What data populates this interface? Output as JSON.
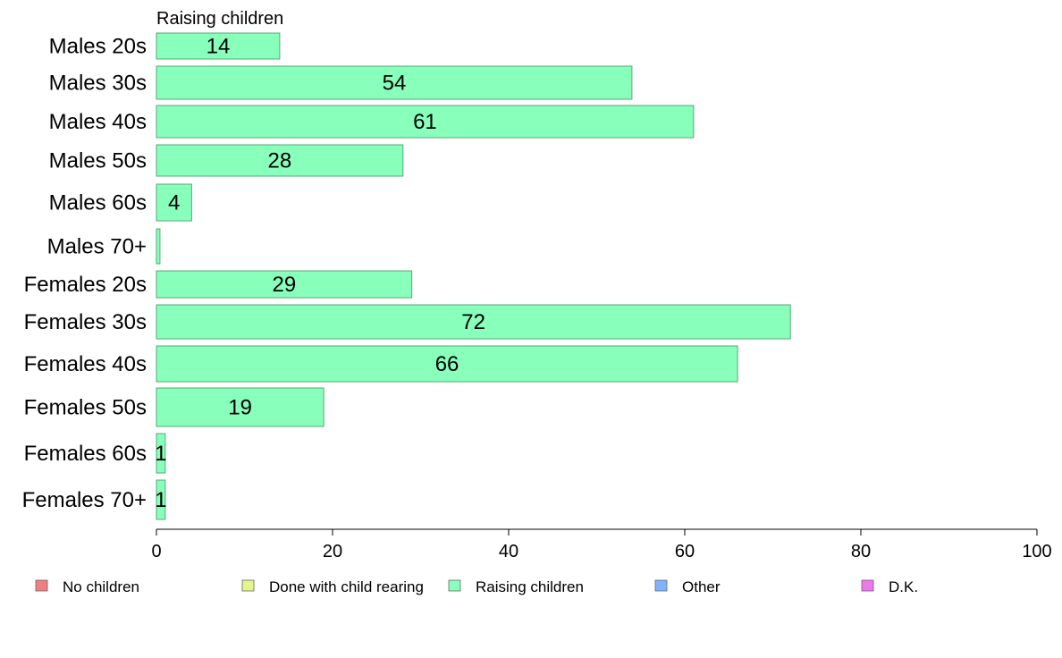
{
  "chart_data": {
    "type": "bar",
    "orientation": "horizontal",
    "stacked": true,
    "series_title": "Raising children",
    "categories": [
      "Males 20s",
      "Males 30s",
      "Males 40s",
      "Males 50s",
      "Males 60s",
      "Males 70+",
      "Females 20s",
      "Females 30s",
      "Females 40s",
      "Females 50s",
      "Females 60s",
      "Females 70+"
    ],
    "series": [
      {
        "name": "Raising children",
        "color": "#88ffbb",
        "values": [
          14,
          54,
          61,
          28,
          4,
          0.4,
          29,
          72,
          66,
          19,
          1,
          1
        ],
        "value_labels": [
          "14",
          "54",
          "61",
          "28",
          "4",
          "",
          "29",
          "72",
          "66",
          "19",
          "1",
          "1"
        ]
      }
    ],
    "xlim": [
      0,
      100
    ],
    "xticks": [
      "0",
      "20",
      "40",
      "60",
      "80",
      "100"
    ],
    "grid": false,
    "legend": {
      "placement": "bottom",
      "items": [
        {
          "label": "No children",
          "color": "#f08080"
        },
        {
          "label": "Done with child rearing",
          "color": "#e6f58a"
        },
        {
          "label": "Raising children",
          "color": "#88ffbb"
        },
        {
          "label": "Other",
          "color": "#80b3ff"
        },
        {
          "label": "D.K.",
          "color": "#ee77ee"
        }
      ]
    }
  }
}
